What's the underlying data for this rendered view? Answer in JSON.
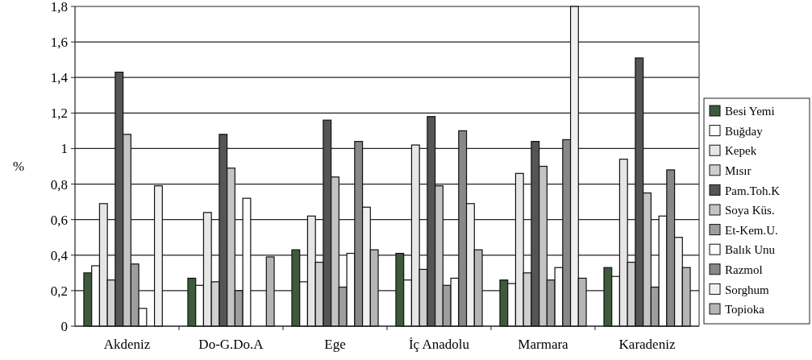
{
  "chart_data": {
    "type": "bar",
    "ylabel": "%",
    "categories": [
      "Akdeniz",
      "Do-G.Do.A",
      "Ege",
      "İç Anadolu",
      "Marmara",
      "Karadeniz"
    ],
    "series": [
      {
        "name": "Besi Yemi",
        "color": "#3d5a3d",
        "values": [
          0.3,
          0.27,
          0.43,
          0.41,
          0.26,
          0.33
        ]
      },
      {
        "name": "Buğday",
        "color": "#ffffff",
        "values": [
          0.34,
          0.23,
          0.25,
          0.26,
          0.24,
          0.28
        ]
      },
      {
        "name": "Kepek",
        "color": "#e6e6e6",
        "values": [
          0.69,
          0.64,
          0.62,
          1.02,
          0.86,
          0.94
        ]
      },
      {
        "name": "Mısır",
        "color": "#cfcfcf",
        "values": [
          0.26,
          0.25,
          0.36,
          0.32,
          0.3,
          0.36
        ]
      },
      {
        "name": "Pam.Toh.K",
        "color": "#555555",
        "values": [
          1.43,
          1.08,
          1.16,
          1.18,
          1.04,
          1.51
        ]
      },
      {
        "name": "Soya Küs.",
        "color": "#c4c4c4",
        "values": [
          1.08,
          0.89,
          0.84,
          0.79,
          0.9,
          0.75
        ]
      },
      {
        "name": "Et-Kem.U.",
        "color": "#9e9e9e",
        "values": [
          0.35,
          0.2,
          0.22,
          0.23,
          0.26,
          0.22
        ]
      },
      {
        "name": "Balık Unu",
        "color": "#fdfdfd",
        "values": [
          0.1,
          0.72,
          0.41,
          0.27,
          0.33,
          0.62
        ]
      },
      {
        "name": "Razmol",
        "color": "#888888",
        "values": [
          null,
          null,
          1.04,
          1.1,
          1.05,
          0.88
        ]
      },
      {
        "name": "Sorghum",
        "color": "#f0f0f0",
        "values": [
          0.79,
          null,
          0.67,
          0.69,
          1.8,
          0.5
        ]
      },
      {
        "name": "Topioka",
        "color": "#b5b5b5",
        "values": [
          null,
          0.39,
          0.43,
          0.43,
          0.27,
          0.33
        ]
      }
    ],
    "ylim": [
      0,
      1.8
    ],
    "yticks": [
      0,
      {
        "value": 0.2,
        "label": "0,2"
      },
      {
        "value": 0.4,
        "label": "0,4"
      },
      {
        "value": 0.6,
        "label": "0,6"
      },
      {
        "value": 0.8,
        "label": "0,8"
      },
      1,
      {
        "value": 1.2,
        "label": "1,2"
      },
      {
        "value": 1.4,
        "label": "1,4"
      },
      {
        "value": 1.6,
        "label": "1,6"
      },
      {
        "value": 1.8,
        "label": "1,8"
      }
    ],
    "grid": "y",
    "legend": "right"
  }
}
